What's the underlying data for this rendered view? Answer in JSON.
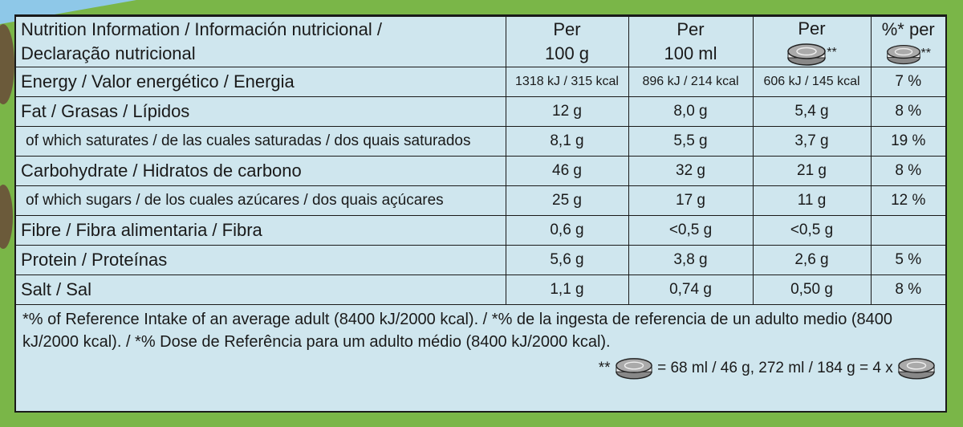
{
  "header": {
    "title_lines": [
      "Nutrition Information / Información nutricional /",
      "Declaração nutricional"
    ],
    "columns": [
      [
        "Per",
        "100 g"
      ],
      [
        "Per",
        "100 ml"
      ],
      [
        "Per",
        "**"
      ],
      [
        "%* per",
        "**"
      ]
    ]
  },
  "table": {
    "rows": [
      [
        "Energy / Valor energético / Energia",
        "1318 kJ / 315 kcal",
        "896 kJ / 214 kcal",
        "606 kJ / 145 kcal",
        "7 %"
      ],
      [
        "Fat / Grasas / Lípidos",
        "12 g",
        "8,0 g",
        "5,4 g",
        "8 %"
      ],
      [
        "of which saturates / de las cuales saturadas / dos quais saturados",
        "8,1 g",
        "5,5 g",
        "3,7 g",
        "19 %"
      ],
      [
        "Carbohydrate / Hidratos de carbono",
        "46 g",
        "32 g",
        "21 g",
        "8 %"
      ],
      [
        "of which sugars / de los cuales azúcares / dos quais açúcares",
        "25 g",
        "17 g",
        "11 g",
        "12 %"
      ],
      [
        "Fibre / Fibra alimentaria / Fibra",
        "0,6 g",
        "<0,5 g",
        "<0,5 g",
        null
      ],
      [
        "Protein / Proteínas",
        "5,6 g",
        "3,8 g",
        "2,6 g",
        "5 %"
      ],
      [
        "Salt / Sal",
        "1,1 g",
        "0,74 g",
        "0,50 g",
        "8 %"
      ]
    ],
    "sub_rows": [
      2,
      4
    ]
  },
  "footer": {
    "note": "*% of Reference Intake of an average adult (8400 kJ/2000 kcal). / *% de la ingesta de referencia de un adulto medio (8400 kJ/2000 kcal). / *% Dose de Referência para um adulto médio (8400 kJ/2000 kcal).",
    "serving_mark": "**",
    "serving": "= 68 ml / 46 g, 272 ml / 184 g = 4 x"
  }
}
